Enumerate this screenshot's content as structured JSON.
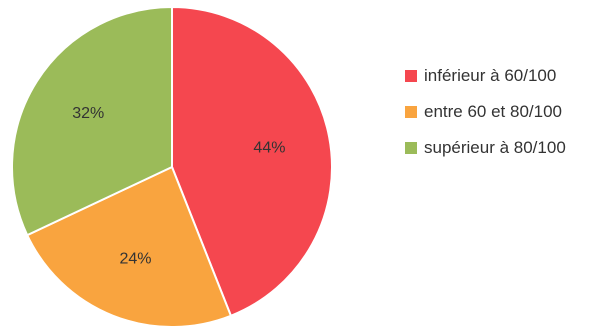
{
  "chart_data": {
    "type": "pie",
    "title": "",
    "categories": [
      "inférieur à 60/100",
      "entre 60 et 80/100",
      "supérieur à 80/100"
    ],
    "values": [
      44,
      24,
      32
    ],
    "value_labels": [
      "44%",
      "24%",
      "32%"
    ],
    "colors": [
      "#f5474f",
      "#f9a43f",
      "#9bbb59"
    ],
    "slice_order": "clockwise from top",
    "legend": "right"
  }
}
